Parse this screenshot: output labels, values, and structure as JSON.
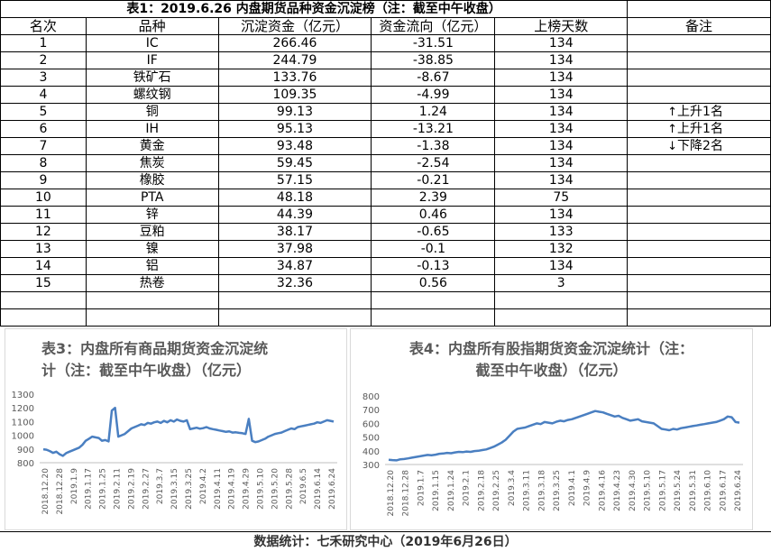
{
  "table": {
    "title": "表1：2019.6.26 内盘期货品种资金沉淀榜（注：截至中午收盘）",
    "headers": [
      "名次",
      "品种",
      "沉淀资金（亿元）",
      "资金流向（亿元）",
      "上榜天数",
      "备注"
    ],
    "rows": [
      [
        "1",
        "IC",
        "266.46",
        "-31.51",
        "134",
        ""
      ],
      [
        "2",
        "IF",
        "244.79",
        "-38.85",
        "134",
        ""
      ],
      [
        "3",
        "铁矿石",
        "133.76",
        "-8.67",
        "134",
        ""
      ],
      [
        "4",
        "螺纹钢",
        "109.35",
        "-4.99",
        "134",
        ""
      ],
      [
        "5",
        "铜",
        "99.13",
        "1.24",
        "134",
        "上升1名"
      ],
      [
        "6",
        "IH",
        "95.13",
        "-13.21",
        "134",
        "上升1名"
      ],
      [
        "7",
        "黄金",
        "93.48",
        "-1.38",
        "134",
        "下降2名"
      ],
      [
        "8",
        "焦炭",
        "59.45",
        "-2.54",
        "134",
        ""
      ],
      [
        "9",
        "橡胶",
        "57.15",
        "-0.21",
        "134",
        ""
      ],
      [
        "10",
        "PTA",
        "48.18",
        "2.39",
        "75",
        ""
      ],
      [
        "11",
        "锌",
        "44.39",
        "0.46",
        "134",
        ""
      ],
      [
        "12",
        "豆粕",
        "38.17",
        "-0.65",
        "133",
        ""
      ],
      [
        "13",
        "镍",
        "37.98",
        "-0.1",
        "132",
        ""
      ],
      [
        "14",
        "铝",
        "34.87",
        "-0.13",
        "134",
        ""
      ],
      [
        "15",
        "热卷",
        "32.36",
        "0.56",
        "3",
        ""
      ]
    ],
    "note_arrows": [
      "",
      "",
      "",
      "",
      "↑",
      "↑",
      "↓",
      "",
      "",
      "",
      "",
      "",
      "",
      "",
      ""
    ]
  },
  "footer": "数据统计：七禾研究中心（2019年6月26日）",
  "colors": {
    "line": "#4a7fc1",
    "title": "#595959",
    "axis": "#595959"
  },
  "chart_data": [
    {
      "type": "line",
      "title_line1": "表3：内盘所有商品期货资金沉淀统",
      "title_line2": "计（注：截至中午收盘）（亿元）",
      "ylim": [
        800,
        1300
      ],
      "yticks": [
        800,
        900,
        1000,
        1100,
        1200,
        1300
      ],
      "xticks": [
        "2018.12.20",
        "2018.12.28",
        "2019.1.9",
        "2019.1.17",
        "2019.1.25",
        "2019.2.11",
        "2019.2.19",
        "2019.2.27",
        "2019.3.7",
        "2019.3.15",
        "2019.3.25",
        "2019.4.2",
        "2019.4.11",
        "2019.4.19",
        "2019.4.29",
        "2019.5.10",
        "2019.5.20",
        "2019.5.28",
        "2019.6.5",
        "2019.6.14",
        "2019.6.24"
      ],
      "grid": false,
      "series": [
        {
          "values": [
            898,
            895,
            885,
            872,
            880,
            862,
            850,
            870,
            880,
            890,
            900,
            910,
            930,
            960,
            975,
            990,
            985,
            980,
            960,
            965,
            955,
            1180,
            1200,
            990,
            1000,
            1010,
            1030,
            1050,
            1060,
            1070,
            1080,
            1075,
            1090,
            1085,
            1095,
            1100,
            1090,
            1105,
            1095,
            1110,
            1100,
            1115,
            1105,
            1100,
            1110,
            1045,
            1050,
            1055,
            1048,
            1052,
            1060,
            1050,
            1045,
            1040,
            1035,
            1030,
            1025,
            1028,
            1020,
            1022,
            1018,
            1015,
            1010,
            1120,
            960,
            950,
            955,
            965,
            975,
            990,
            1000,
            1010,
            1015,
            1020,
            1030,
            1040,
            1050,
            1045,
            1060,
            1065,
            1070,
            1075,
            1080,
            1085,
            1095,
            1090,
            1100,
            1110,
            1105,
            1100
          ]
        }
      ]
    },
    {
      "type": "line",
      "title_line1": "表4：内盘所有股指期货资金沉淀统计（注：",
      "title_line2": "截至中午收盘）（亿元）",
      "ylim": [
        300,
        800
      ],
      "yticks": [
        300,
        400,
        500,
        600,
        700,
        800
      ],
      "xticks": [
        "2018.12.20",
        "2018.12.28",
        "2019.1.7",
        "2019.1.15",
        "2019.1.24",
        "2019.2.1",
        "2019.2.18",
        "2019.2.25",
        "2019.3.4",
        "2019.3.11",
        "2019.3.18",
        "2019.3.25",
        "2019.4.1",
        "2019.4.9",
        "2019.4.16",
        "2019.4.23",
        "2019.4.30",
        "2019.5.10",
        "2019.5.17",
        "2019.5.24",
        "2019.5.31",
        "2019.6.10",
        "2019.6.17",
        "2019.6.24"
      ],
      "grid": false,
      "series": [
        {
          "values": [
            335,
            332,
            330,
            338,
            340,
            345,
            350,
            355,
            360,
            365,
            370,
            368,
            372,
            378,
            380,
            385,
            382,
            388,
            392,
            390,
            395,
            392,
            398,
            400,
            405,
            410,
            420,
            430,
            445,
            460,
            480,
            510,
            540,
            560,
            565,
            570,
            580,
            590,
            600,
            595,
            610,
            605,
            600,
            612,
            620,
            615,
            625,
            630,
            640,
            650,
            660,
            670,
            680,
            690,
            685,
            680,
            670,
            660,
            650,
            655,
            640,
            630,
            620,
            625,
            630,
            615,
            610,
            605,
            600,
            580,
            560,
            555,
            550,
            560,
            555,
            565,
            570,
            575,
            580,
            585,
            590,
            595,
            600,
            605,
            610,
            620,
            630,
            650,
            645,
            610,
            605
          ]
        }
      ]
    }
  ]
}
